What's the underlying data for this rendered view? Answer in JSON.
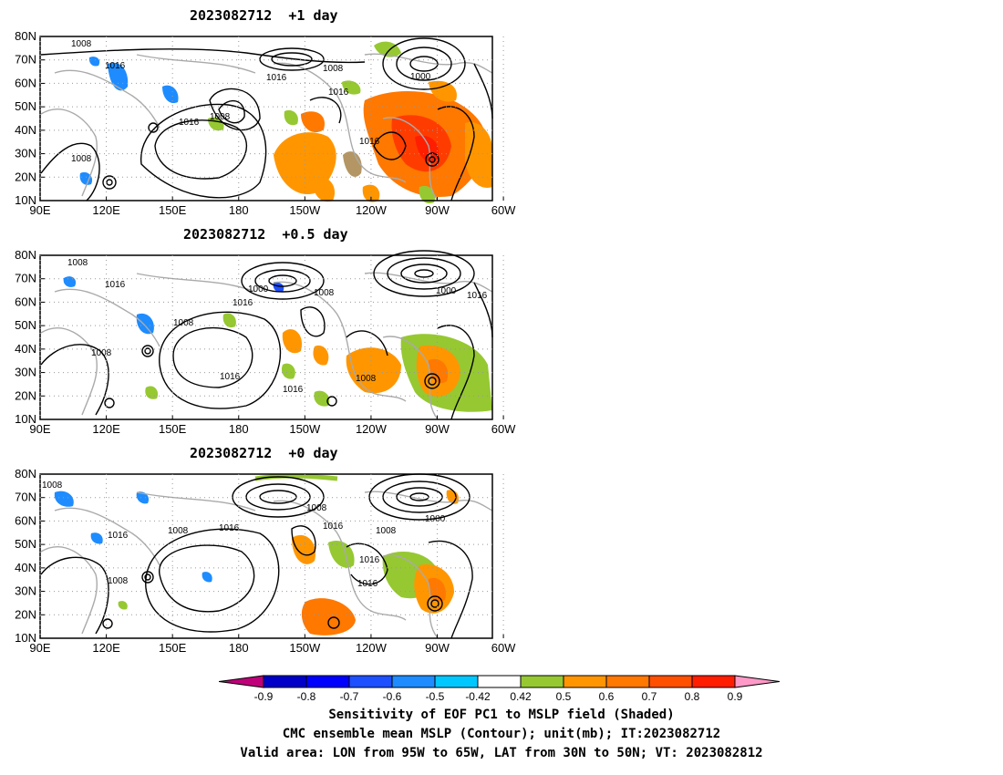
{
  "panels": [
    {
      "title": "2023082712  +1 day"
    },
    {
      "title": "2023082712  +0.5 day"
    },
    {
      "title": "2023082712  +0 day"
    }
  ],
  "axes": {
    "lat_ticks": [
      "80N",
      "70N",
      "60N",
      "50N",
      "40N",
      "30N",
      "20N",
      "10N"
    ],
    "lon_ticks": [
      "90E",
      "120E",
      "150E",
      "180",
      "150W",
      "120W",
      "90W",
      "60W"
    ]
  },
  "contour_labels": {
    "p0": [
      "1008",
      "1016",
      "1008",
      "1016",
      "1000",
      "1016",
      "1008",
      "1016",
      "1008",
      "1008"
    ],
    "p1": [
      "1008",
      "1016",
      "1000",
      "1008",
      "1016",
      "1008",
      "1008",
      "1016",
      "1016",
      "1008",
      "1000",
      "1016"
    ],
    "p2": [
      "1008",
      "1016",
      "1008",
      "1008",
      "1016",
      "1008",
      "1016",
      "1000",
      "1008",
      "1016",
      "1016"
    ]
  },
  "colorbar": {
    "colors": [
      "#c0007a",
      "#0000c8",
      "#0000ff",
      "#1e50ff",
      "#1e8cff",
      "#00c8ff",
      "#ffffff",
      "#96c832",
      "#ff9600",
      "#ff7800",
      "#ff5000",
      "#ff1e00",
      "#ff99c8"
    ],
    "labels": [
      "-0.9",
      "-0.8",
      "-0.7",
      "-0.6",
      "-0.5",
      "-0.42",
      "0.42",
      "0.5",
      "0.6",
      "0.7",
      "0.8",
      "0.9"
    ]
  },
  "caption": {
    "line1": "Sensitivity of EOF PC1 to MSLP field (Shaded)",
    "line2": "CMC ensemble mean MSLP (Contour); unit(mb); IT:2023082712",
    "line3": "Valid area: LON from 95W to 65W, LAT from 30N to 50N; VT: 2023082812"
  }
}
